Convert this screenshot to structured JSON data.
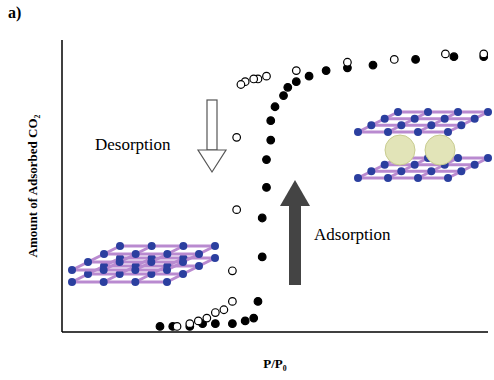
{
  "chart_data": {
    "type": "scatter",
    "panel_label": "a)",
    "x_label": "P/P₀",
    "y_label": "Amount of Adsorbed CO₂",
    "xlim": [
      0,
      1
    ],
    "ylim": [
      0,
      1.05
    ],
    "tick_labels": false,
    "grid": false,
    "series": [
      {
        "name": "Adsorption",
        "color": "#000000",
        "marker": "filled_circle",
        "x": [
          0.23,
          0.26,
          0.3,
          0.33,
          0.36,
          0.4,
          0.43,
          0.45,
          0.46,
          0.47,
          0.47,
          0.48,
          0.48,
          0.49,
          0.49,
          0.5,
          0.52,
          0.53,
          0.55,
          0.58,
          0.62,
          0.67,
          0.73,
          0.83,
          0.92,
          0.99
        ],
        "values": [
          0.02,
          0.02,
          0.02,
          0.03,
          0.03,
          0.03,
          0.04,
          0.05,
          0.11,
          0.27,
          0.41,
          0.52,
          0.62,
          0.69,
          0.76,
          0.81,
          0.85,
          0.88,
          0.9,
          0.92,
          0.94,
          0.95,
          0.96,
          0.98,
          0.99,
          0.99
        ]
      },
      {
        "name": "Desorption",
        "color": "#000000",
        "marker": "open_circle",
        "x": [
          0.99,
          0.9,
          0.78,
          0.67,
          0.55,
          0.48,
          0.46,
          0.45,
          0.43,
          0.42,
          0.41,
          0.41,
          0.4,
          0.4,
          0.38,
          0.36,
          0.34,
          0.32,
          0.3,
          0.27
        ],
        "values": [
          1.0,
          1.0,
          0.98,
          0.97,
          0.94,
          0.92,
          0.91,
          0.91,
          0.9,
          0.89,
          0.7,
          0.44,
          0.22,
          0.11,
          0.08,
          0.07,
          0.05,
          0.04,
          0.03,
          0.02
        ]
      }
    ]
  }
}
